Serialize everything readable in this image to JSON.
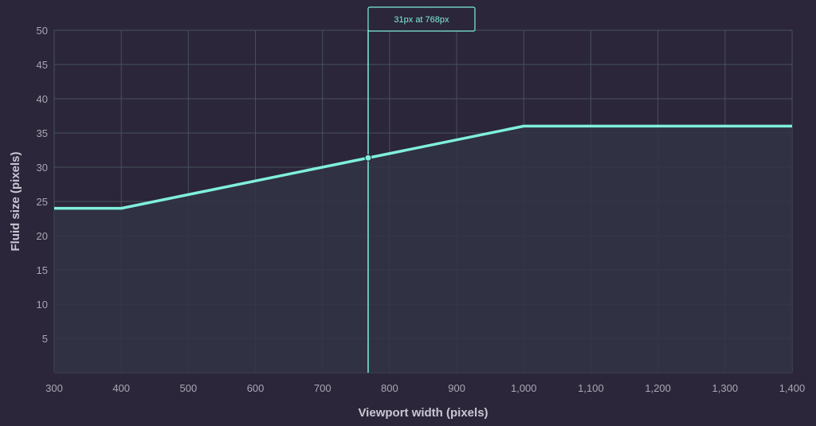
{
  "chart_data": {
    "type": "line",
    "xlabel": "Viewport width (pixels)",
    "ylabel": "Fluid size (pixels)",
    "xlim": [
      300,
      1400
    ],
    "ylim": [
      0,
      50
    ],
    "x_ticks": [
      300,
      400,
      500,
      600,
      700,
      800,
      900,
      1000,
      1100,
      1200,
      1300,
      1400
    ],
    "x_tick_labels": [
      "300",
      "400",
      "500",
      "600",
      "700",
      "800",
      "900",
      "1,000",
      "1,100",
      "1,200",
      "1,300",
      "1,400"
    ],
    "y_ticks": [
      5,
      10,
      15,
      20,
      25,
      30,
      35,
      40,
      45,
      50
    ],
    "y_tick_labels": [
      "5",
      "10",
      "15",
      "20",
      "25",
      "30",
      "35",
      "40",
      "45",
      "50"
    ],
    "grid": true,
    "series": [
      {
        "x": [
          300,
          400,
          1000,
          1400
        ],
        "y": [
          24,
          24,
          36,
          36
        ]
      }
    ],
    "annotation": {
      "x": 768,
      "y": 31.36,
      "label": "31px at 768px"
    }
  },
  "colors": {
    "background": "#2b2639",
    "line": "#7ff0dc",
    "grid": "#47515c",
    "area": "#323446"
  }
}
